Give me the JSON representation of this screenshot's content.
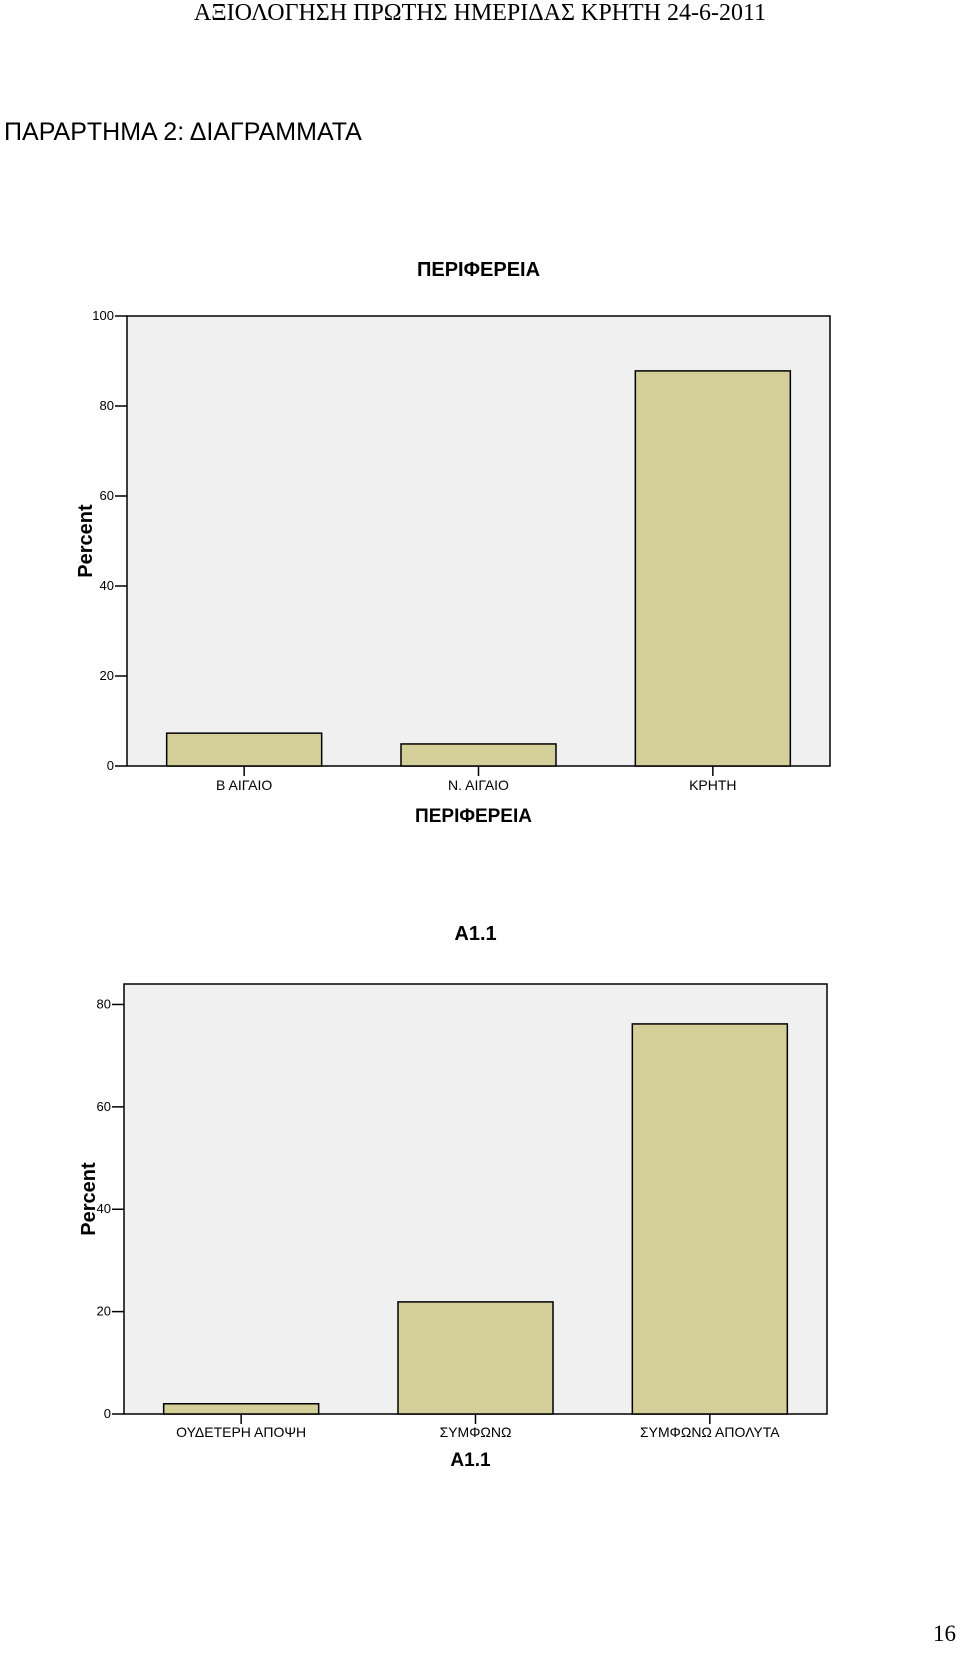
{
  "page": {
    "running_header": "ΑΞΙΟΛΟΓΗΣΗ ΠΡΩΤΗΣ ΗΜΕΡΙΔΑΣ ΚΡΗΤΗ 24-6-2011",
    "section_title": "ΠΑΡΑΡΤΗΜΑ 2: ΔΙΑΓΡΑΜΜΑΤΑ",
    "page_number": "16"
  },
  "colors": {
    "plot_bg": "#f0f0f0",
    "bar_fill": "#d4ce98",
    "stroke": "#000000"
  },
  "chart_data": [
    {
      "type": "bar",
      "title": "ΠΕΡΙΦΕΡΕΙΑ",
      "xlabel": "ΠΕΡΙΦΕΡΕΙΑ",
      "ylabel": "Percent",
      "categories": [
        "Β ΑΙΓΑΙΟ",
        "Ν. ΑΙΓΑΙΟ",
        "ΚΡΗΤΗ"
      ],
      "values": [
        7.3,
        4.9,
        87.8
      ],
      "ylim": [
        0,
        100
      ],
      "yticks": [
        0,
        20,
        40,
        60,
        80,
        100
      ],
      "grid": false
    },
    {
      "type": "bar",
      "title": "Α1.1",
      "xlabel": "Α1.1",
      "ylabel": "Percent",
      "categories": [
        "ΟΥΔΕΤΕΡΗ ΑΠΟΨΗ",
        "ΣΥΜΦΩΝΩ",
        "ΣΥΜΦΩΝΩ ΑΠΟΛΥΤΑ"
      ],
      "values": [
        2.0,
        21.9,
        76.2
      ],
      "ylim": [
        0,
        84
      ],
      "yticks": [
        0,
        20,
        40,
        60,
        80
      ],
      "grid": false
    }
  ]
}
